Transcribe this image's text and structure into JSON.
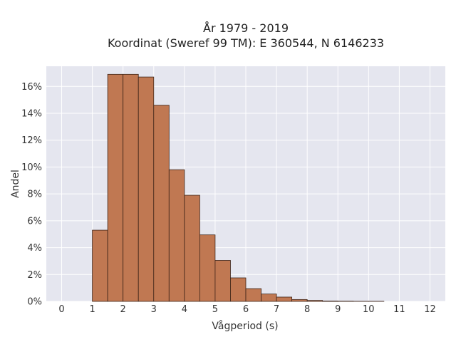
{
  "chart_data": {
    "type": "bar",
    "title": "År 1979 - 2019",
    "subtitle": "Koordinat (Sweref 99 TM): E 360544, N 6146233",
    "xlabel": "Vågperiod (s)",
    "ylabel": "Andel",
    "xlim": [
      -0.5,
      12.5
    ],
    "ylim": [
      0,
      17.5
    ],
    "x_ticks": [
      0,
      1,
      2,
      3,
      4,
      5,
      6,
      7,
      8,
      9,
      10,
      11,
      12
    ],
    "x_tick_labels": [
      "0",
      "1",
      "2",
      "3",
      "4",
      "5",
      "6",
      "7",
      "8",
      "9",
      "10",
      "11",
      "12"
    ],
    "y_ticks": [
      0,
      2,
      4,
      6,
      8,
      10,
      12,
      14,
      16
    ],
    "y_tick_labels": [
      "0%",
      "2%",
      "4%",
      "6%",
      "8%",
      "10%",
      "12%",
      "14%",
      "16%"
    ],
    "bin_width": 0.5,
    "bins": [
      {
        "start": 1.0,
        "end": 1.5,
        "value": 5.3
      },
      {
        "start": 1.5,
        "end": 2.0,
        "value": 16.9
      },
      {
        "start": 2.0,
        "end": 2.5,
        "value": 16.9
      },
      {
        "start": 2.5,
        "end": 3.0,
        "value": 16.7
      },
      {
        "start": 3.0,
        "end": 3.5,
        "value": 14.6
      },
      {
        "start": 3.5,
        "end": 4.0,
        "value": 9.8
      },
      {
        "start": 4.0,
        "end": 4.5,
        "value": 7.9
      },
      {
        "start": 4.5,
        "end": 5.0,
        "value": 4.95
      },
      {
        "start": 5.0,
        "end": 5.5,
        "value": 3.05
      },
      {
        "start": 5.5,
        "end": 6.0,
        "value": 1.75
      },
      {
        "start": 6.0,
        "end": 6.5,
        "value": 0.95
      },
      {
        "start": 6.5,
        "end": 7.0,
        "value": 0.55
      },
      {
        "start": 7.0,
        "end": 7.5,
        "value": 0.32
      },
      {
        "start": 7.5,
        "end": 8.0,
        "value": 0.14
      },
      {
        "start": 8.0,
        "end": 8.5,
        "value": 0.07
      },
      {
        "start": 8.5,
        "end": 9.0,
        "value": 0.03
      },
      {
        "start": 9.0,
        "end": 9.5,
        "value": 0.02
      },
      {
        "start": 9.5,
        "end": 10.0,
        "value": 0.01
      },
      {
        "start": 10.0,
        "end": 10.5,
        "value": 0.01
      }
    ],
    "grid": true,
    "colors": {
      "bar_fill": "#c07852",
      "bar_stroke": "#3d2418",
      "plot_bg": "#e5e6ef",
      "grid": "#ffffff"
    }
  }
}
